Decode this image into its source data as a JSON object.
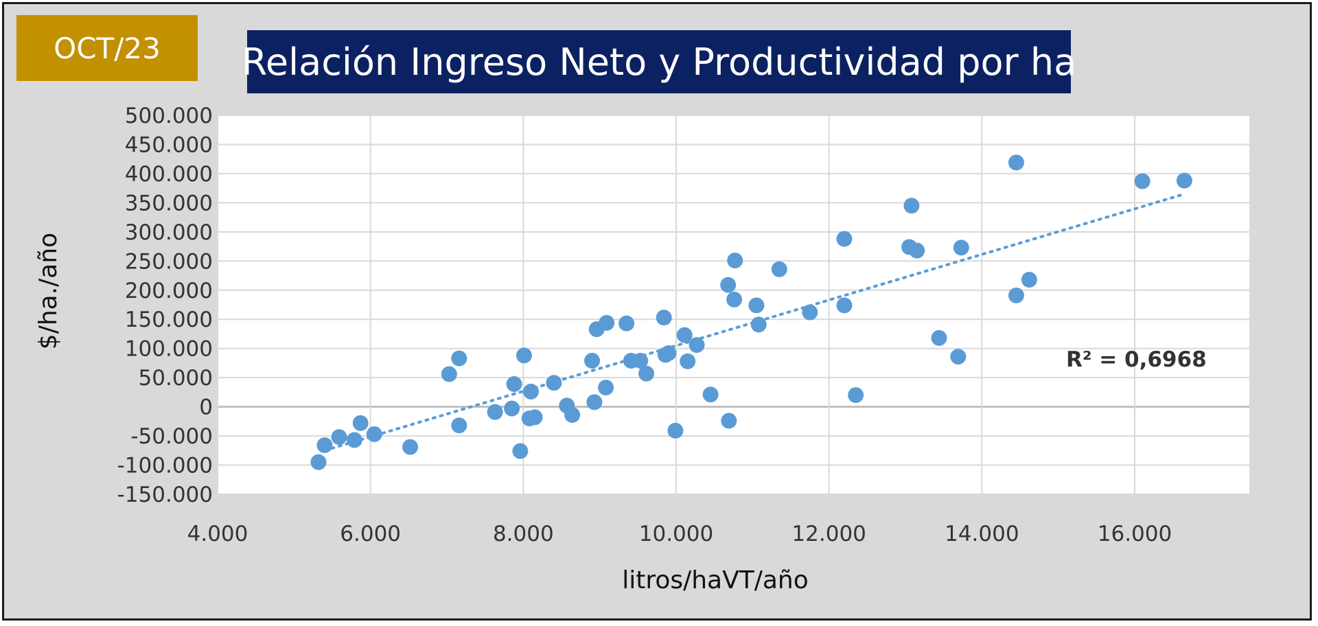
{
  "badge": {
    "label": "OCT/23",
    "color": "#c39000"
  },
  "header": {
    "title": "Relación Ingreso Neto y Productividad por ha",
    "color": "#0b2161"
  },
  "chart_data": {
    "type": "scatter",
    "title": "Relación Ingreso Neto y Productividad por ha",
    "xlabel": "litros/haVT/año",
    "ylabel": "$/ha./año",
    "xlim": [
      4000,
      17500
    ],
    "ylim": [
      -150000,
      500000
    ],
    "x_ticks": [
      4000,
      6000,
      8000,
      10000,
      12000,
      14000,
      16000
    ],
    "x_tick_labels": [
      "4.000",
      "6.000",
      "8.000",
      "10.000",
      "12.000",
      "14.000",
      "16.000"
    ],
    "y_ticks": [
      -150000,
      -100000,
      -50000,
      0,
      50000,
      100000,
      150000,
      200000,
      250000,
      300000,
      350000,
      400000,
      450000,
      500000
    ],
    "y_tick_labels": [
      "-150.000",
      "-100.000",
      "-50.000",
      "0",
      "50.000",
      "100.000",
      "150.000",
      "200.000",
      "250.000",
      "300.000",
      "350.000",
      "400.000",
      "450.000",
      "500.000"
    ],
    "grid": true,
    "point_color": "#5b9bd5",
    "trendline": {
      "type": "linear",
      "style": "dotted",
      "x": [
        5400,
        16600
      ],
      "y": [
        -75000,
        363000
      ],
      "r2_label": "R² = 0,6968"
    },
    "points": [
      [
        5320,
        -95000
      ],
      [
        5400,
        -66000
      ],
      [
        5590,
        -52000
      ],
      [
        5790,
        -57000
      ],
      [
        5870,
        -28000
      ],
      [
        6050,
        -47000
      ],
      [
        6520,
        -69000
      ],
      [
        7030,
        56000
      ],
      [
        7160,
        83000
      ],
      [
        7160,
        -32000
      ],
      [
        7630,
        -9000
      ],
      [
        7850,
        -3000
      ],
      [
        7880,
        39000
      ],
      [
        7960,
        -76000
      ],
      [
        8010,
        88000
      ],
      [
        8080,
        -20000
      ],
      [
        8100,
        26000
      ],
      [
        8150,
        -18000
      ],
      [
        8400,
        41000
      ],
      [
        8570,
        2000
      ],
      [
        8640,
        -14000
      ],
      [
        8900,
        79000
      ],
      [
        8930,
        8000
      ],
      [
        8960,
        133000
      ],
      [
        9080,
        33000
      ],
      [
        9090,
        144000
      ],
      [
        9350,
        143000
      ],
      [
        9410,
        79000
      ],
      [
        9530,
        79000
      ],
      [
        9610,
        57000
      ],
      [
        9840,
        153000
      ],
      [
        9860,
        89000
      ],
      [
        9900,
        92000
      ],
      [
        9990,
        -41000
      ],
      [
        10110,
        123000
      ],
      [
        10150,
        78000
      ],
      [
        10270,
        106000
      ],
      [
        10450,
        21000
      ],
      [
        10680,
        209000
      ],
      [
        10690,
        -24000
      ],
      [
        10760,
        184000
      ],
      [
        10770,
        251000
      ],
      [
        11050,
        174000
      ],
      [
        11080,
        141000
      ],
      [
        11350,
        236000
      ],
      [
        11750,
        162000
      ],
      [
        12200,
        288000
      ],
      [
        12200,
        174000
      ],
      [
        12350,
        20000
      ],
      [
        13050,
        274000
      ],
      [
        13080,
        345000
      ],
      [
        13150,
        268000
      ],
      [
        13440,
        118000
      ],
      [
        13690,
        86000
      ],
      [
        13730,
        273000
      ],
      [
        14450,
        419000
      ],
      [
        14450,
        191000
      ],
      [
        14620,
        218000
      ],
      [
        16100,
        387000
      ],
      [
        16650,
        388000
      ]
    ]
  }
}
